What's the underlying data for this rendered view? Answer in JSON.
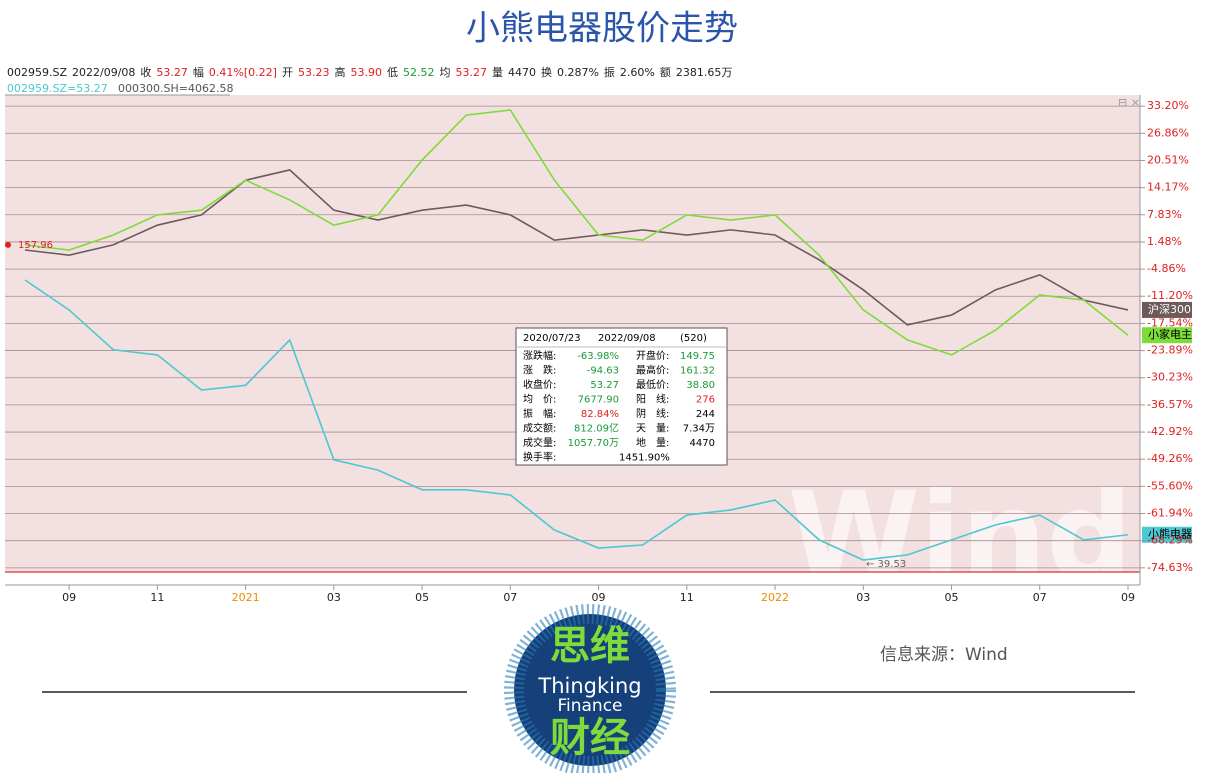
{
  "header": {
    "title": "小熊电器股价走势"
  },
  "quote_bar": {
    "code": "002959.SZ",
    "date": "2022/09/08",
    "items": [
      {
        "label": "收",
        "value": "53.27",
        "color": "#e02020"
      },
      {
        "label": "幅",
        "value": "0.41%[0.22]",
        "color": "#e02020"
      },
      {
        "label": "开",
        "value": "53.23",
        "color": "#e02020"
      },
      {
        "label": "高",
        "value": "53.90",
        "color": "#e02020"
      },
      {
        "label": "低",
        "value": "52.52",
        "color": "#1a9a3a"
      },
      {
        "label": "均",
        "value": "53.27",
        "color": "#e02020"
      },
      {
        "label": "量",
        "value": "4470",
        "color": "#222222"
      },
      {
        "label": "换",
        "value": "0.287%",
        "color": "#222222"
      },
      {
        "label": "振",
        "value": "2.60%",
        "color": "#222222"
      },
      {
        "label": "额",
        "value": "2381.65万",
        "color": "#222222"
      }
    ]
  },
  "legend_header": [
    "002959.SZ=53.27",
    "000300.SH=4062.58"
  ],
  "chart_data": {
    "type": "line",
    "categories": [
      null,
      "09",
      null,
      "11",
      null,
      "2021",
      null,
      "03",
      null,
      "05",
      null,
      "07",
      null,
      "09",
      null,
      "11",
      null,
      "2022",
      null,
      "03",
      null,
      "05",
      null,
      "07",
      null,
      "09"
    ],
    "series": [
      {
        "name": "小熊电器",
        "color": "#4cc8d0",
        "values": [
          -7.4,
          -14.4,
          -23.7,
          -24.9,
          -33.1,
          -32,
          -21.4,
          -49.4,
          -51.8,
          -56.4,
          -56.4,
          -57.6,
          -65.8,
          -70,
          -69.3,
          -62.3,
          -61.1,
          -58.8,
          -68.1,
          -72.8,
          -71.6,
          -68.1,
          -64.6,
          -62.3,
          -68.1,
          -66.9
        ]
      },
      {
        "name": "小家电主",
        "color": "#7ddc3a",
        "values": [
          0.8,
          -0.4,
          3.1,
          7.8,
          8.9,
          15.9,
          11.3,
          5.4,
          7.8,
          20.6,
          31.1,
          32.3,
          15.9,
          3.1,
          1.9,
          7.8,
          6.6,
          7.8,
          -1.6,
          -14.4,
          -21.4,
          -24.9,
          -19.1,
          -10.9,
          -12.1,
          -20.3
        ]
      },
      {
        "name": "沪深300",
        "color": "#6e5a5a",
        "values": [
          -0.4,
          -1.6,
          0.8,
          5.4,
          7.8,
          15.9,
          18.3,
          8.9,
          6.6,
          8.9,
          10.1,
          7.8,
          1.9,
          3.1,
          4.3,
          3.1,
          4.3,
          3.1,
          -2.7,
          -9.7,
          -17.9,
          -15.6,
          -9.7,
          -6.2,
          -12.1,
          -14.4
        ]
      }
    ],
    "ylim": [
      -75.6,
      35.8
    ],
    "yticks": [
      {
        "value": 33.2,
        "label": "33.20%"
      },
      {
        "value": 26.86,
        "label": "26.86%"
      },
      {
        "value": 20.51,
        "label": "20.51%"
      },
      {
        "value": 14.17,
        "label": "14.17%"
      },
      {
        "value": 7.83,
        "label": "7.83%"
      },
      {
        "value": 1.48,
        "label": "1.48%"
      },
      {
        "value": -4.86,
        "label": "-4.86%"
      },
      {
        "value": -11.2,
        "label": "-11.20%"
      },
      {
        "value": -17.54,
        "label": "-17.54%"
      },
      {
        "value": -23.89,
        "label": "-23.89%"
      },
      {
        "value": -30.23,
        "label": "-30.23%"
      },
      {
        "value": -36.57,
        "label": "-36.57%"
      },
      {
        "value": -42.92,
        "label": "-42.92%"
      },
      {
        "value": -49.26,
        "label": "-49.26%"
      },
      {
        "value": -55.6,
        "label": "-55.60%"
      },
      {
        "value": -61.94,
        "label": "-61.94%"
      },
      {
        "value": -68.29,
        "label": "-68.29%"
      },
      {
        "value": -74.63,
        "label": "-74.63%"
      }
    ],
    "grid": true,
    "annotations": [
      "157.96",
      "← 39.53"
    ],
    "watermark": "Wind"
  },
  "popup": {
    "start": "2020/07/23",
    "end": "2022/09/08",
    "count": "(520)",
    "rows": [
      [
        "涨跌幅:",
        "-63.98%",
        "开盘价:",
        "149.75"
      ],
      [
        "涨　跌:",
        "-94.63",
        "最高价:",
        "161.32"
      ],
      [
        "收盘价:",
        "53.27",
        "最低价:",
        "38.80"
      ],
      [
        "均　价:",
        "7677.90",
        "阳　线:",
        "276"
      ],
      [
        "振　幅:",
        "82.84%",
        "阴　线:",
        "244"
      ],
      [
        "成交额:",
        "812.09亿",
        "天　量:",
        "7.34万"
      ],
      [
        "成交量:",
        "1057.70万",
        "地　量:",
        "4470"
      ],
      [
        "换手率:",
        "1451.90%"
      ]
    ]
  },
  "footer": {
    "source": "信息来源：Wind",
    "logo_top": "思维",
    "logo_mid1": "Thingking",
    "logo_mid2": "Finance",
    "logo_bottom": "财经"
  }
}
